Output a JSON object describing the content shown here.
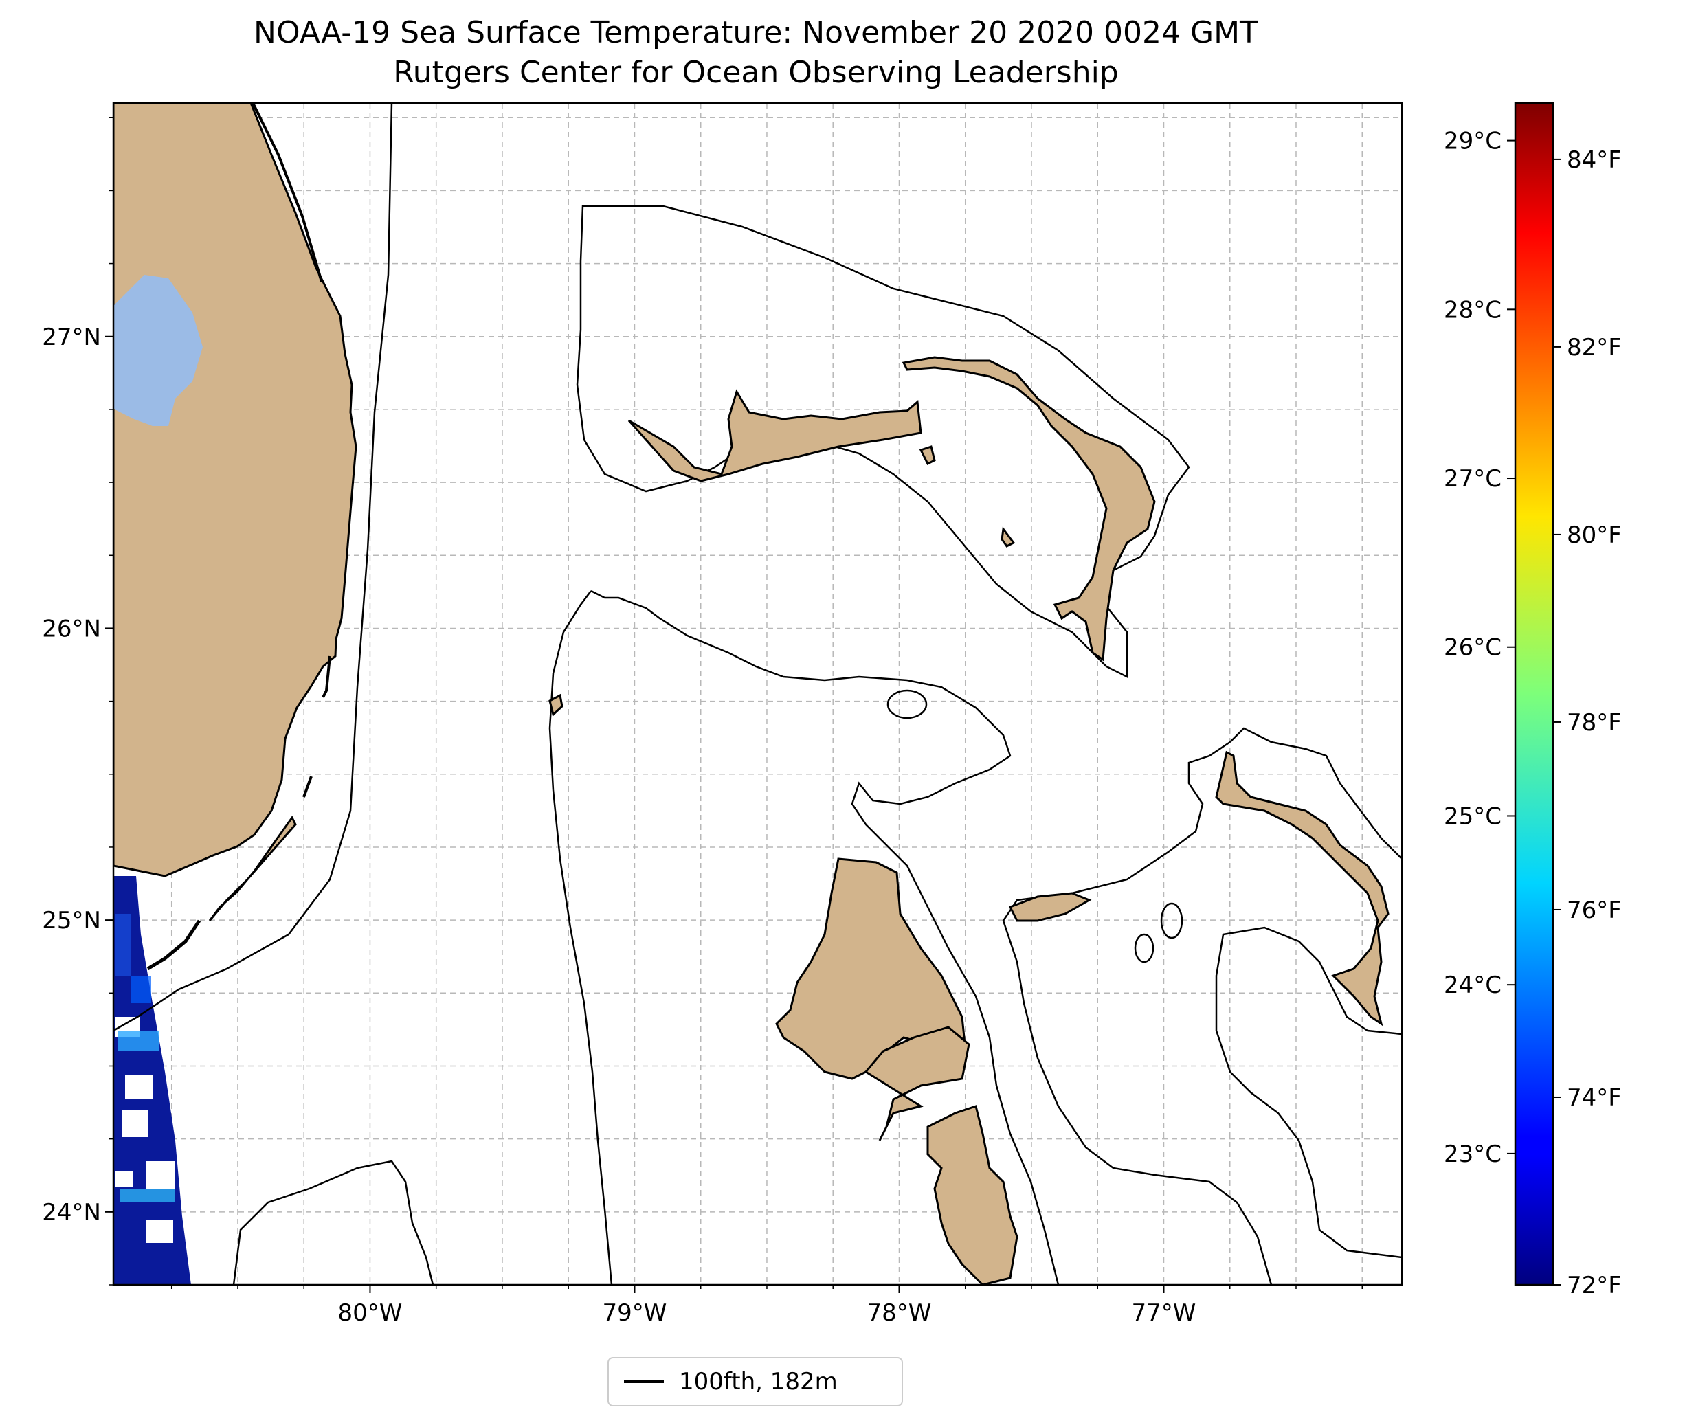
{
  "title_line1": "NOAA-19 Sea Surface Temperature: November 20 2020 0024 GMT",
  "title_line2": "Rutgers Center for Ocean Observing Leadership",
  "map": {
    "lon_range": [
      -80.97,
      -76.1
    ],
    "lat_range": [
      23.75,
      27.8
    ],
    "lon_ticks": [
      {
        "value": -80,
        "label": "80°W"
      },
      {
        "value": -79,
        "label": "79°W"
      },
      {
        "value": -78,
        "label": "78°W"
      },
      {
        "value": -77,
        "label": "77°W"
      }
    ],
    "lat_ticks": [
      {
        "value": 24,
        "label": "24°N"
      },
      {
        "value": 25,
        "label": "25°N"
      },
      {
        "value": 26,
        "label": "26°N"
      },
      {
        "value": 27,
        "label": "27°N"
      }
    ],
    "gridlines": true,
    "land_color": "#d2b48c",
    "lake_color": "#9bbbe6",
    "contour_color": "#000000"
  },
  "colorbar": {
    "colormap": "jet",
    "celsius_ticks": [
      {
        "value": 23,
        "label": "23°C"
      },
      {
        "value": 24,
        "label": "24°C"
      },
      {
        "value": 25,
        "label": "25°C"
      },
      {
        "value": 26,
        "label": "26°C"
      },
      {
        "value": 27,
        "label": "27°C"
      },
      {
        "value": 28,
        "label": "28°C"
      },
      {
        "value": 29,
        "label": "29°C"
      }
    ],
    "fahrenheit_ticks": [
      {
        "value": 72,
        "label": "72°F"
      },
      {
        "value": 74,
        "label": "74°F"
      },
      {
        "value": 76,
        "label": "76°F"
      },
      {
        "value": 78,
        "label": "78°F"
      },
      {
        "value": 80,
        "label": "80°F"
      },
      {
        "value": 82,
        "label": "82°F"
      },
      {
        "value": 84,
        "label": "84°F"
      }
    ],
    "fahrenheit_range": [
      72,
      84.6
    ]
  },
  "legend": {
    "label": "100fth, 182m"
  }
}
